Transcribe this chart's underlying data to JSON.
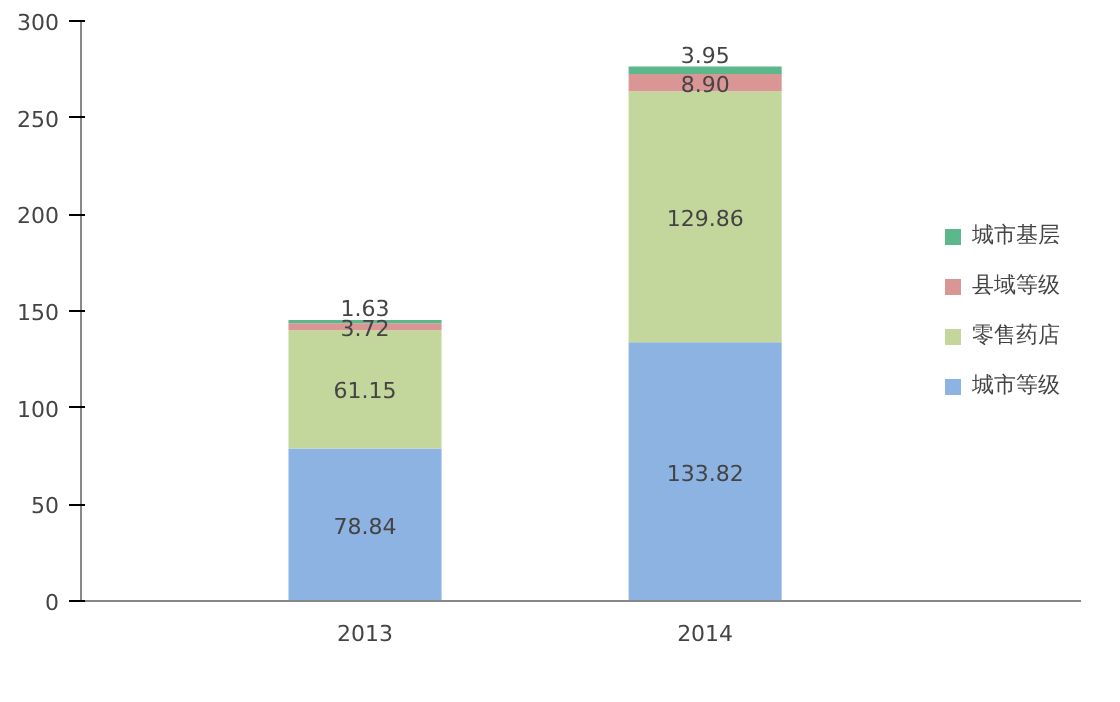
{
  "chart_data": {
    "type": "bar",
    "stacked": true,
    "categories": [
      "2013",
      "2014"
    ],
    "series": [
      {
        "name": "城市等级",
        "color": "#8db3e2",
        "values": [
          78.84,
          133.82
        ],
        "value_labels": [
          "78.84",
          "133.82"
        ]
      },
      {
        "name": "零售药店",
        "color": "#c3d69b",
        "values": [
          61.15,
          129.86
        ],
        "value_labels": [
          "61.15",
          "129.86"
        ]
      },
      {
        "name": "县域等级",
        "color": "#d99694",
        "values": [
          3.72,
          8.9
        ],
        "value_labels": [
          "3.72",
          "8.90"
        ]
      },
      {
        "name": "城市基层",
        "color": "#5cb88a",
        "values": [
          1.63,
          3.95
        ],
        "value_labels": [
          "1.63",
          "3.95"
        ]
      }
    ],
    "ylim": [
      0,
      300
    ],
    "yticks": [
      0,
      50,
      100,
      150,
      200,
      250,
      300
    ],
    "grid": false,
    "legend": "right"
  }
}
